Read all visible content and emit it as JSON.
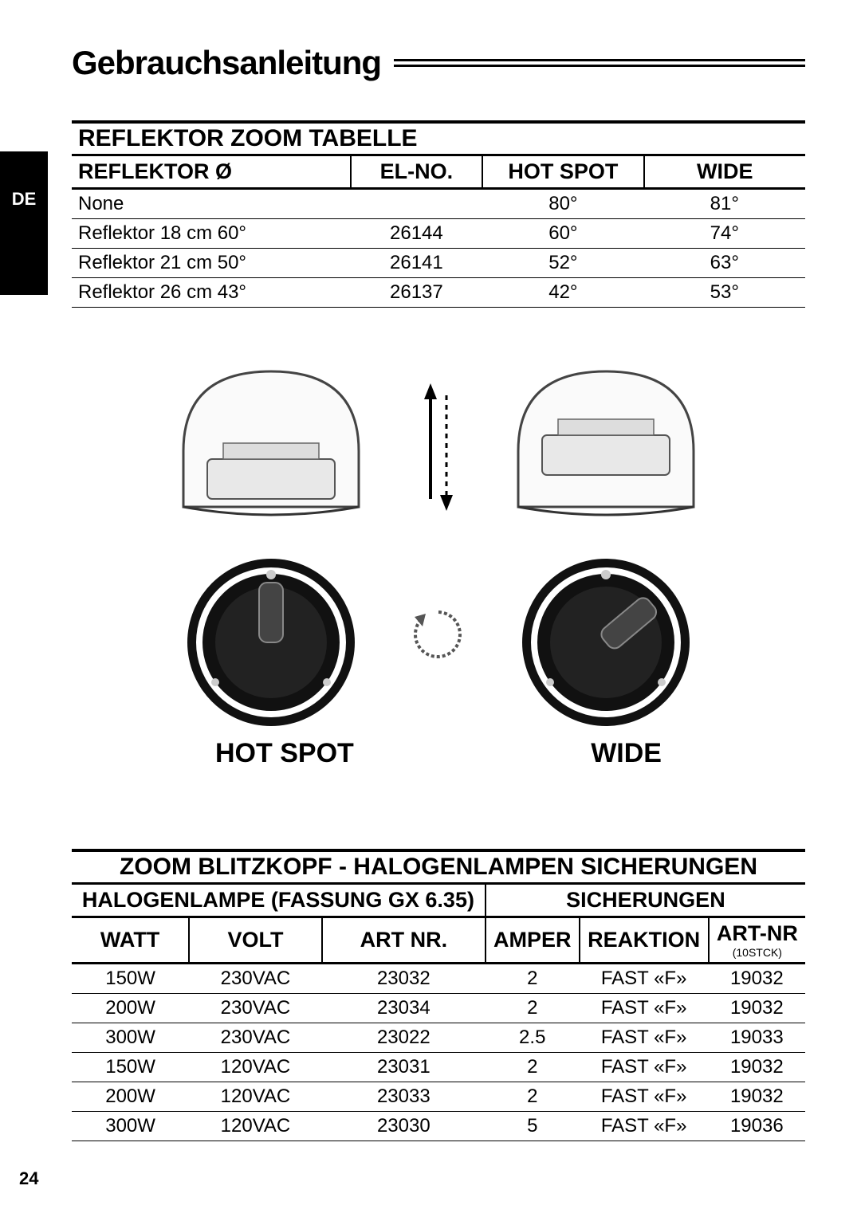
{
  "page_title": "Gebrauchsanleitung",
  "side_tab": "DE",
  "page_number": "24",
  "diagram_labels": {
    "left": "HOT SPOT",
    "right": "WIDE"
  },
  "table1": {
    "title": "REFLEKTOR ZOOM TABELLE",
    "columns": [
      "REFLEKTOR Ø",
      "EL-NO.",
      "HOT SPOT",
      "WIDE"
    ],
    "rows": [
      [
        "None",
        "",
        "80°",
        "81°"
      ],
      [
        "Reflektor 18 cm 60°",
        "26144",
        "60°",
        "74°"
      ],
      [
        "Reflektor 21 cm 50°",
        "26141",
        "52°",
        "63°"
      ],
      [
        "Reflektor 26 cm 43°",
        "26137",
        "42°",
        "53°"
      ]
    ]
  },
  "table2": {
    "title": "ZOOM BLITZKOPF - HALOGENLAMPEN SICHERUNGEN",
    "group_headers": [
      "HALOGENLAMPE (FASSUNG GX 6.35)",
      "SICHERUNGEN"
    ],
    "columns": [
      "WATT",
      "VOLT",
      "ART NR.",
      "AMPER",
      "REAKTION",
      "ART-NR"
    ],
    "col6_note": "(10STCK)",
    "rows": [
      [
        "150W",
        "230VAC",
        "23032",
        "2",
        "FAST «F»",
        "19032"
      ],
      [
        "200W",
        "230VAC",
        "23034",
        "2",
        "FAST «F»",
        "19032"
      ],
      [
        "300W",
        "230VAC",
        "23022",
        "2.5",
        "FAST «F»",
        "19033"
      ],
      [
        "150W",
        "120VAC",
        "23031",
        "2",
        "FAST «F»",
        "19032"
      ],
      [
        "200W",
        "120VAC",
        "23033",
        "2",
        "FAST «F»",
        "19032"
      ],
      [
        "300W",
        "120VAC",
        "23030",
        "5",
        "FAST «F»",
        "19036"
      ]
    ]
  }
}
